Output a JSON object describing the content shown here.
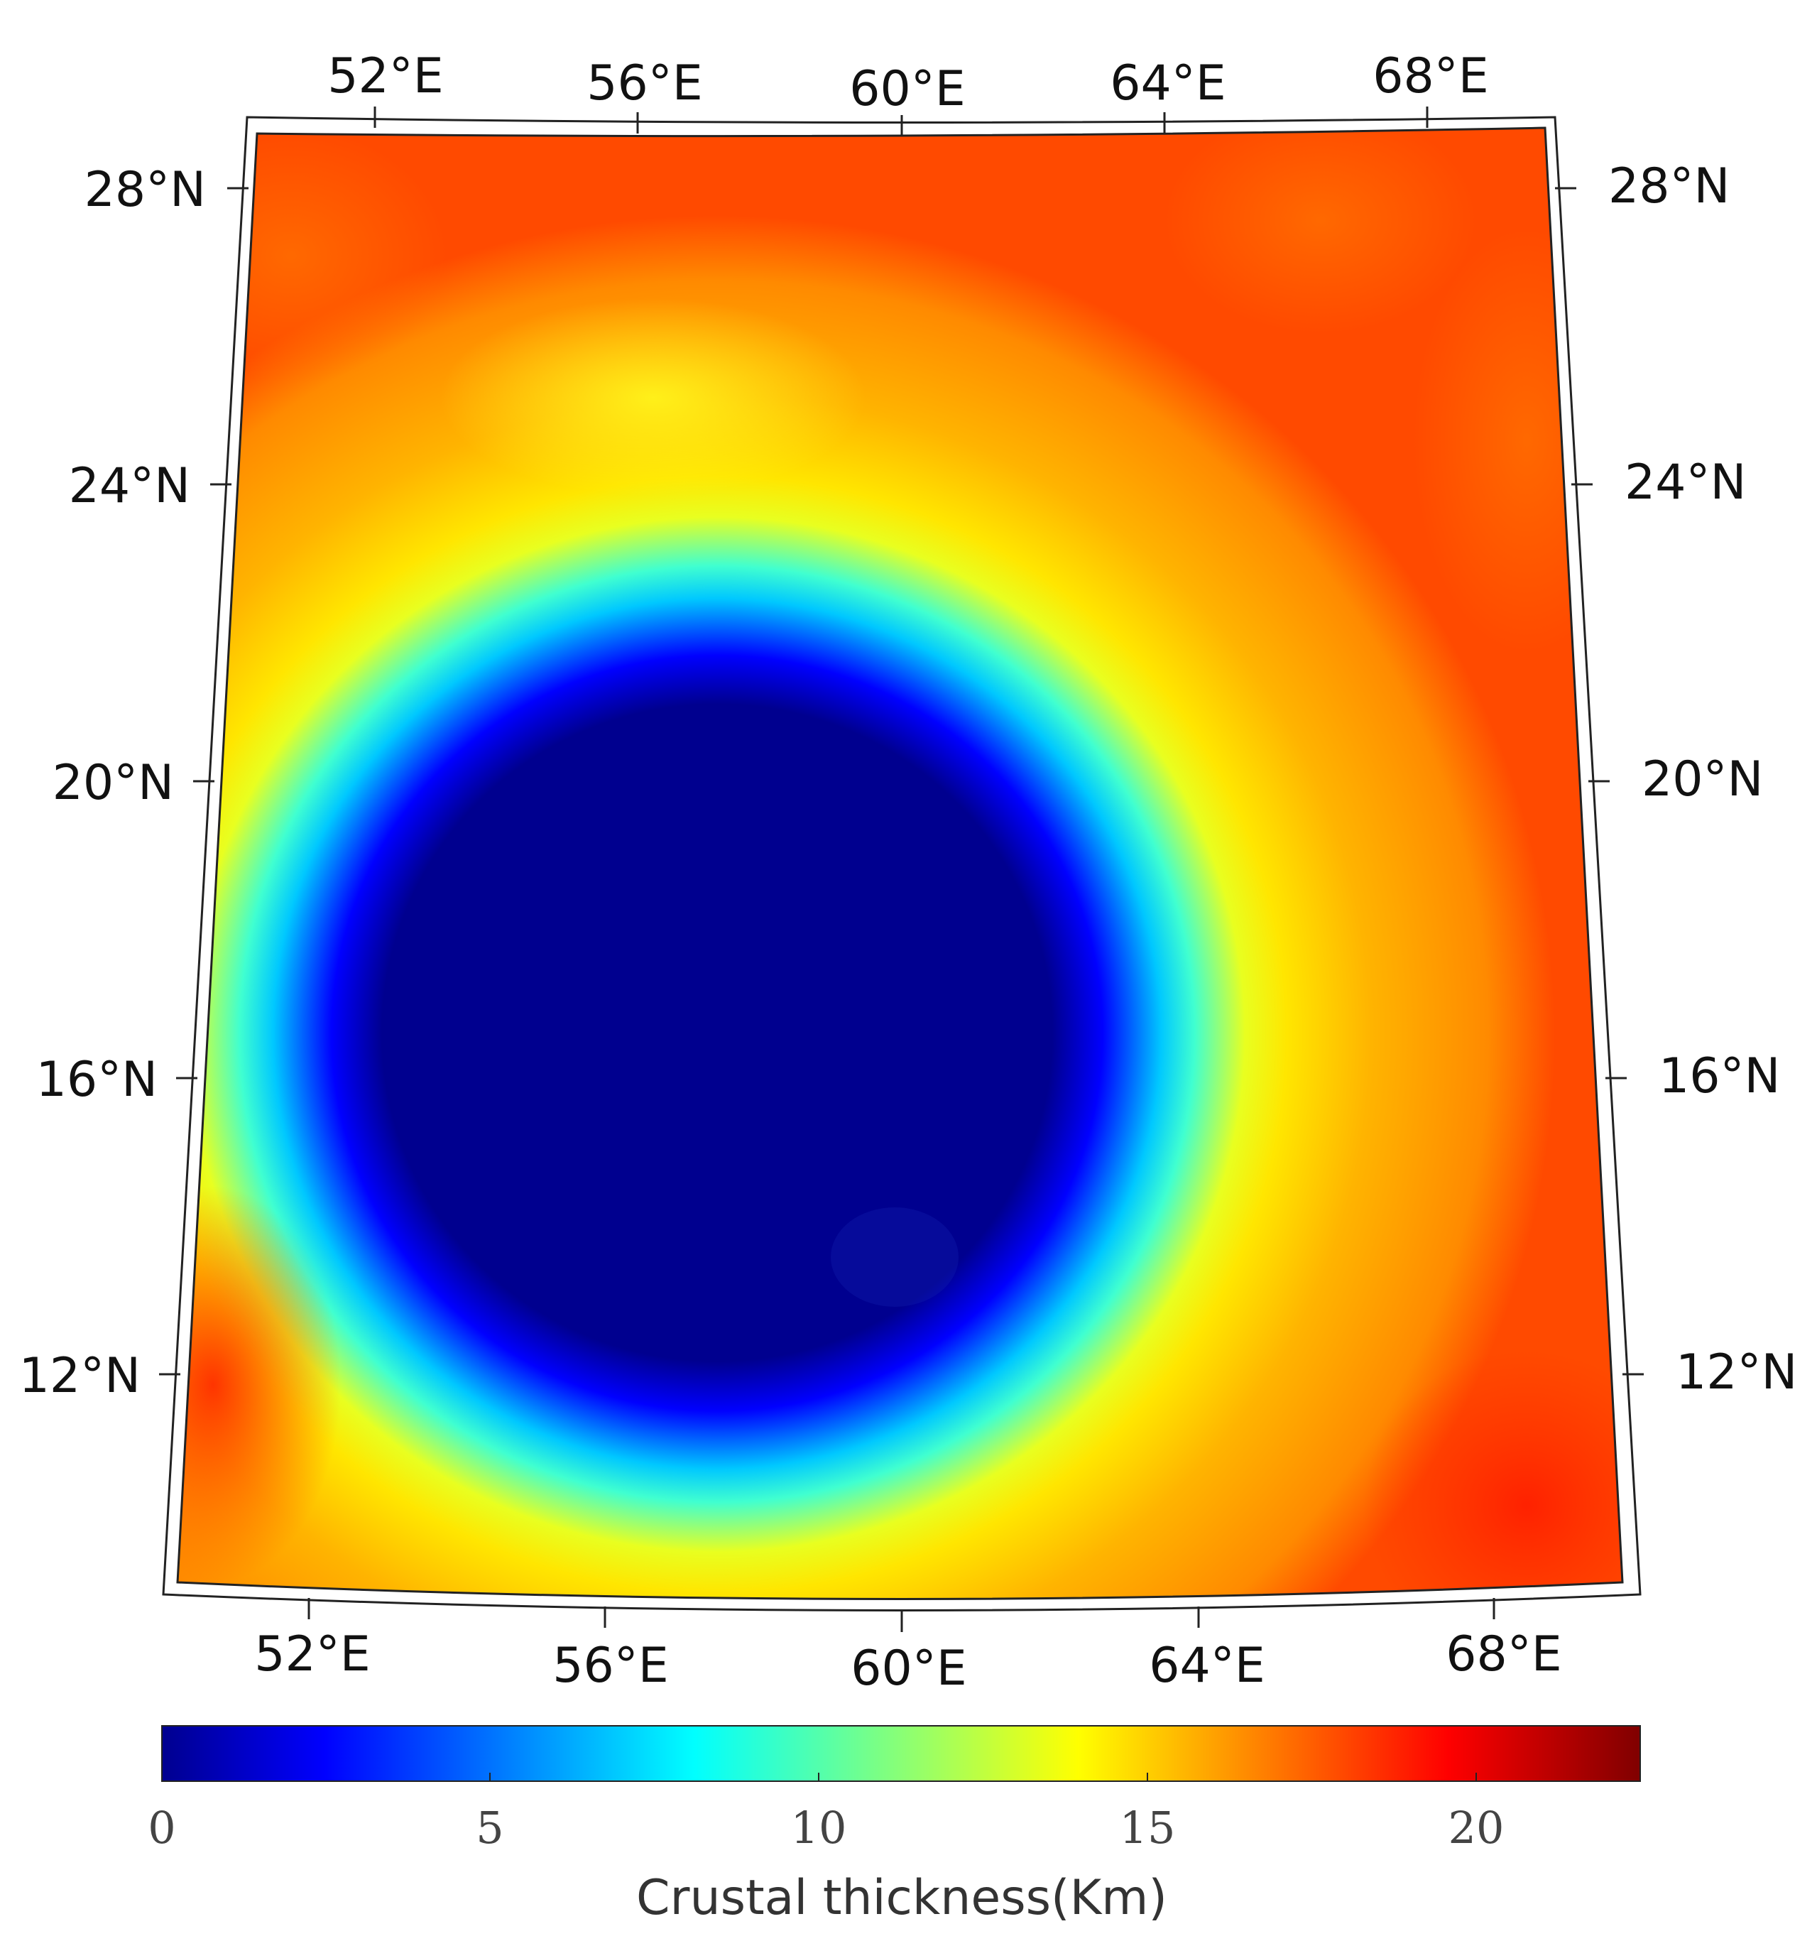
{
  "map": {
    "lon_ticks_top": [
      "52°E",
      "56°E",
      "60°E",
      "64°E",
      "68°E"
    ],
    "lon_ticks_bottom": [
      "52°E",
      "56°E",
      "60°E",
      "64°E",
      "68°E"
    ],
    "lat_ticks_left": [
      "28°N",
      "24°N",
      "20°N",
      "16°N",
      "12°N"
    ],
    "lat_ticks_right": [
      "28°N",
      "24°N",
      "20°N",
      "16°N",
      "12°N"
    ],
    "colormap": "jet",
    "field": "crustal thickness, thin (~0 km) circular basin centered near 59°E 18°N, thickening to ~15–20 km outward"
  },
  "colorbar": {
    "ticks": [
      "0",
      "5",
      "10",
      "15",
      "20"
    ],
    "min": 0,
    "max": 22.5,
    "title": "Crustal thickness(Km)"
  },
  "colors": {
    "deep_blue": "#00008f",
    "blue": "#0000ff",
    "cyan": "#00ffff",
    "yellow": "#ffff00",
    "orange": "#ff8000",
    "red": "#ff0000",
    "dark_red": "#800000"
  }
}
